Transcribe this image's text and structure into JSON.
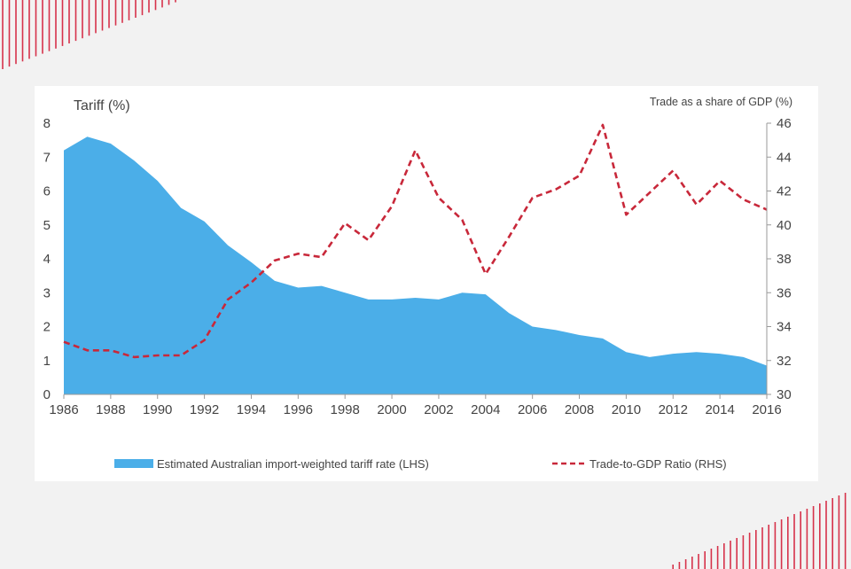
{
  "chart_data": {
    "type": "area",
    "x": [
      1986,
      1987,
      1988,
      1989,
      1990,
      1991,
      1992,
      1993,
      1994,
      1995,
      1996,
      1997,
      1998,
      1999,
      2000,
      2001,
      2002,
      2003,
      2004,
      2005,
      2006,
      2007,
      2008,
      2009,
      2010,
      2011,
      2012,
      2013,
      2014,
      2015,
      2016
    ],
    "xlabel": "",
    "xlim": [
      1986,
      2016
    ],
    "xticks": [
      "1986",
      "1988",
      "1990",
      "1992",
      "1994",
      "1996",
      "1998",
      "2000",
      "2002",
      "2004",
      "2006",
      "2008",
      "2010",
      "2012",
      "2014",
      "2016"
    ],
    "ylabel_left": "Tariff (%)",
    "ylim_left": [
      0,
      8
    ],
    "yticks_left": [
      "0",
      "1",
      "2",
      "3",
      "4",
      "5",
      "6",
      "7",
      "8"
    ],
    "ylabel_right": "Trade as a share of GDP  (%)",
    "ylim_right": [
      30,
      46
    ],
    "yticks_right": [
      "30",
      "32",
      "34",
      "36",
      "38",
      "40",
      "42",
      "44",
      "46"
    ],
    "grid": false,
    "legend_position": "bottom",
    "series": [
      {
        "name": "Estimated Australian import-weighted tariff rate (LHS)",
        "type": "area",
        "axis": "left",
        "color": "#4baee8",
        "values": [
          7.2,
          7.6,
          7.4,
          6.9,
          6.3,
          5.5,
          5.1,
          4.4,
          3.9,
          3.35,
          3.15,
          3.2,
          3.0,
          2.8,
          2.8,
          2.85,
          2.8,
          3.0,
          2.95,
          2.4,
          2.0,
          1.9,
          1.75,
          1.65,
          1.25,
          1.1,
          1.2,
          1.25,
          1.2,
          1.1,
          0.85
        ]
      },
      {
        "name": "Trade-to-GDP Ratio (RHS)",
        "type": "line",
        "style": "dashed",
        "axis": "right",
        "color": "#c8283a",
        "values": [
          33.1,
          32.6,
          32.6,
          32.2,
          32.3,
          32.3,
          33.2,
          35.6,
          36.6,
          37.9,
          38.3,
          38.1,
          40.1,
          39.1,
          41.1,
          44.4,
          41.6,
          40.3,
          37.1,
          39.3,
          41.6,
          42.1,
          42.9,
          45.9,
          40.6,
          41.9,
          43.2,
          41.2,
          42.6,
          41.5,
          40.9
        ]
      }
    ]
  }
}
